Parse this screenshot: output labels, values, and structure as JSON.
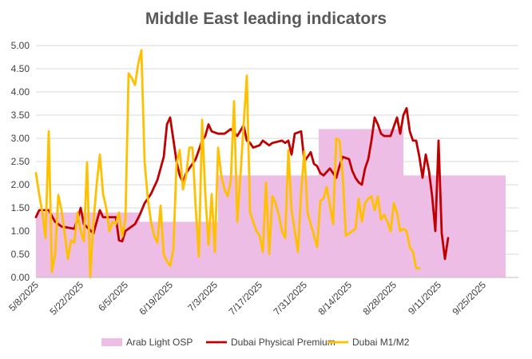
{
  "chart_data": {
    "type": "line",
    "title": "Middle East leading indicators",
    "xlabel": "",
    "ylabel": "",
    "ylim": [
      0,
      5
    ],
    "yticks": [
      "0.00",
      "0.50",
      "1.00",
      "1.50",
      "2.00",
      "2.50",
      "3.00",
      "3.50",
      "4.00",
      "4.50",
      "5.00"
    ],
    "x_range": [
      "2025-05-08",
      "2025-10-07"
    ],
    "xtick_labels": [
      "5/8/2025",
      "5/22/2025",
      "6/5/2025",
      "6/19/2025",
      "7/3/2025",
      "7/17/2025",
      "7/31/2025",
      "8/14/2025",
      "8/28/2025",
      "9/11/2025",
      "9/25/2025"
    ],
    "xtick_days": [
      0,
      14,
      28,
      42,
      56,
      70,
      84,
      98,
      112,
      126,
      140
    ],
    "grid": "horizontal",
    "legend_position": "bottom",
    "series": [
      {
        "name": "Arab Light OSP",
        "kind": "area",
        "color": "#eebde6",
        "points": [
          [
            0,
            1.4
          ],
          [
            32.5,
            1.4
          ],
          [
            32.5,
            1.2
          ],
          [
            57,
            1.2
          ],
          [
            57,
            2.2
          ],
          [
            88.5,
            2.2
          ],
          [
            88.5,
            3.2
          ],
          [
            115,
            3.2
          ],
          [
            115,
            2.2
          ],
          [
            147,
            2.2
          ]
        ]
      },
      {
        "name": "Dubai Physical Premium",
        "kind": "line",
        "color": "#c00000",
        "points": [
          [
            0,
            1.3
          ],
          [
            1,
            1.45
          ],
          [
            4,
            1.45
          ],
          [
            6,
            1.2
          ],
          [
            8,
            1.1
          ],
          [
            12,
            1.05
          ],
          [
            13,
            1.25
          ],
          [
            14,
            1.5
          ],
          [
            15,
            1.15
          ],
          [
            18,
            0.95
          ],
          [
            20,
            1.45
          ],
          [
            21,
            1.3
          ],
          [
            25,
            1.3
          ],
          [
            26,
            0.8
          ],
          [
            27,
            0.78
          ],
          [
            28,
            1.0
          ],
          [
            31,
            1.15
          ],
          [
            32.5,
            1.35
          ],
          [
            34,
            1.6
          ],
          [
            36,
            1.8
          ],
          [
            38,
            2.1
          ],
          [
            40,
            2.6
          ],
          [
            41,
            3.3
          ],
          [
            42,
            3.45
          ],
          [
            44,
            2.5
          ],
          [
            45,
            2.2
          ],
          [
            46,
            2.05
          ],
          [
            47,
            2.25
          ],
          [
            50,
            2.55
          ],
          [
            52,
            2.95
          ],
          [
            53,
            3.05
          ],
          [
            54,
            3.3
          ],
          [
            55,
            3.15
          ],
          [
            57,
            3.1
          ],
          [
            59,
            3.1
          ],
          [
            61,
            3.2
          ],
          [
            63,
            3.05
          ],
          [
            65,
            3.28
          ],
          [
            66,
            2.95
          ],
          [
            67,
            2.9
          ],
          [
            68,
            2.8
          ],
          [
            70,
            2.85
          ],
          [
            71,
            2.95
          ],
          [
            73,
            2.85
          ],
          [
            74,
            2.9
          ],
          [
            77,
            2.95
          ],
          [
            78,
            2.9
          ],
          [
            79,
            2.95
          ],
          [
            80,
            2.65
          ],
          [
            81,
            3.1
          ],
          [
            83,
            3.15
          ],
          [
            84,
            2.5
          ],
          [
            85,
            2.6
          ],
          [
            86,
            2.7
          ],
          [
            87,
            2.45
          ],
          [
            88,
            2.4
          ],
          [
            89,
            2.25
          ],
          [
            90,
            2.2
          ],
          [
            92,
            2.35
          ],
          [
            94,
            2.15
          ],
          [
            95,
            2.4
          ],
          [
            96,
            2.6
          ],
          [
            98,
            2.55
          ],
          [
            99,
            2.3
          ],
          [
            100,
            2.15
          ],
          [
            101,
            2.05
          ],
          [
            102,
            2.0
          ],
          [
            103,
            2.35
          ],
          [
            104,
            2.55
          ],
          [
            105,
            2.95
          ],
          [
            106,
            3.45
          ],
          [
            107,
            3.3
          ],
          [
            108,
            3.1
          ],
          [
            109,
            3.05
          ],
          [
            111,
            3.05
          ],
          [
            112,
            3.25
          ],
          [
            113,
            3.45
          ],
          [
            114,
            3.1
          ],
          [
            115,
            3.5
          ],
          [
            116,
            3.65
          ],
          [
            117,
            3.15
          ],
          [
            118,
            2.95
          ],
          [
            119,
            2.95
          ],
          [
            120,
            2.6
          ],
          [
            121,
            2.15
          ],
          [
            122,
            2.65
          ],
          [
            123,
            2.3
          ],
          [
            124,
            1.75
          ],
          [
            125,
            1.0
          ],
          [
            126,
            2.95
          ],
          [
            127,
            0.95
          ],
          [
            128,
            0.4
          ],
          [
            129,
            0.85
          ]
        ]
      },
      {
        "name": "Dubai M1/M2",
        "kind": "line",
        "color": "#ffc000",
        "points": [
          [
            0,
            2.25
          ],
          [
            1,
            1.8
          ],
          [
            2,
            1.4
          ],
          [
            3,
            0.85
          ],
          [
            4,
            3.15
          ],
          [
            5,
            0.12
          ],
          [
            6,
            0.5
          ],
          [
            7,
            1.78
          ],
          [
            8,
            1.45
          ],
          [
            9,
            0.95
          ],
          [
            10,
            0.4
          ],
          [
            11,
            0.8
          ],
          [
            12,
            0.75
          ],
          [
            13,
            1.4
          ],
          [
            14,
            1.0
          ],
          [
            15,
            0.78
          ],
          [
            16,
            2.48
          ],
          [
            17,
            0.0
          ],
          [
            18,
            1.2
          ],
          [
            19,
            2.0
          ],
          [
            20,
            2.65
          ],
          [
            21,
            1.8
          ],
          [
            22,
            1.5
          ],
          [
            23,
            1.0
          ],
          [
            24,
            1.2
          ],
          [
            25,
            1.15
          ],
          [
            26,
            1.4
          ],
          [
            27,
            0.88
          ],
          [
            28,
            1.25
          ],
          [
            29,
            4.4
          ],
          [
            30,
            4.3
          ],
          [
            31,
            4.15
          ],
          [
            32,
            4.6
          ],
          [
            33,
            4.9
          ],
          [
            34,
            2.5
          ],
          [
            35,
            1.7
          ],
          [
            36,
            1.2
          ],
          [
            37,
            0.9
          ],
          [
            38,
            0.75
          ],
          [
            39,
            1.55
          ],
          [
            40,
            0.5
          ],
          [
            41,
            0.35
          ],
          [
            42,
            0.25
          ],
          [
            43,
            0.6
          ],
          [
            44,
            2.45
          ],
          [
            45,
            2.75
          ],
          [
            46,
            1.9
          ],
          [
            47,
            2.2
          ],
          [
            48,
            2.8
          ],
          [
            49,
            2.8
          ],
          [
            50,
            1.5
          ],
          [
            51,
            0.45
          ],
          [
            52,
            3.4
          ],
          [
            53,
            1.8
          ],
          [
            54,
            0.7
          ],
          [
            55,
            1.8
          ],
          [
            56,
            0.55
          ],
          [
            57,
            2.8
          ],
          [
            58,
            2.2
          ],
          [
            59,
            1.9
          ],
          [
            60,
            1.75
          ],
          [
            61,
            2.1
          ],
          [
            62,
            3.8
          ],
          [
            63,
            1.2
          ],
          [
            64,
            2.2
          ],
          [
            65,
            3.3
          ],
          [
            66,
            4.35
          ],
          [
            67,
            1.4
          ],
          [
            68,
            1.2
          ],
          [
            69,
            1.0
          ],
          [
            70,
            0.9
          ],
          [
            71,
            0.55
          ],
          [
            72,
            2.05
          ],
          [
            73,
            0.5
          ],
          [
            74,
            1.75
          ],
          [
            75,
            1.6
          ],
          [
            76,
            1.35
          ],
          [
            77,
            1.0
          ],
          [
            78,
            0.85
          ],
          [
            79,
            2.75
          ],
          [
            80,
            1.45
          ],
          [
            81,
            1.0
          ],
          [
            82,
            0.55
          ],
          [
            83,
            1.85
          ],
          [
            84,
            2.72
          ],
          [
            85,
            1.4
          ],
          [
            86,
            1.15
          ],
          [
            87,
            0.9
          ],
          [
            88,
            0.65
          ],
          [
            89,
            1.65
          ],
          [
            90,
            1.7
          ],
          [
            91,
            1.95
          ],
          [
            92,
            1.55
          ],
          [
            93,
            1.15
          ],
          [
            94,
            3.0
          ],
          [
            95,
            2.95
          ],
          [
            96,
            2.2
          ],
          [
            97,
            0.9
          ],
          [
            98,
            0.95
          ],
          [
            99,
            1.0
          ],
          [
            100,
            1.05
          ],
          [
            101,
            1.7
          ],
          [
            102,
            1.2
          ],
          [
            103,
            1.6
          ],
          [
            104,
            1.7
          ],
          [
            105,
            1.75
          ],
          [
            106,
            1.45
          ],
          [
            107,
            1.75
          ],
          [
            108,
            1.25
          ],
          [
            109,
            1.35
          ],
          [
            110,
            1.2
          ],
          [
            111,
            1.0
          ],
          [
            112,
            1.6
          ],
          [
            113,
            1.4
          ],
          [
            114,
            1.0
          ],
          [
            115,
            1.05
          ],
          [
            116,
            1.0
          ],
          [
            117,
            0.65
          ],
          [
            118,
            0.55
          ],
          [
            119,
            0.2
          ],
          [
            120,
            0.2
          ]
        ]
      }
    ]
  }
}
